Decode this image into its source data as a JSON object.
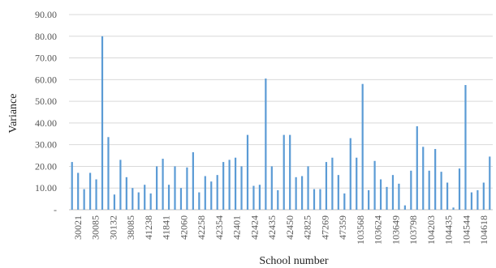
{
  "chart_data": {
    "type": "bar",
    "xlabel": "School number",
    "ylabel": "Variance",
    "ylim": [
      0,
      90
    ],
    "y_ticks": [
      "-",
      "10.00",
      "20.00",
      "30.00",
      "40.00",
      "50.00",
      "60.00",
      "70.00",
      "80.00",
      "90.00"
    ],
    "x_tick_labels": [
      "30021",
      "30085",
      "30132",
      "38085",
      "41238",
      "41841",
      "42060",
      "42258",
      "42354",
      "42401",
      "42424",
      "42435",
      "42450",
      "42825",
      "47269",
      "47359",
      "103568",
      "103624",
      "103649",
      "103798",
      "104203",
      "104435",
      "104544",
      "104618"
    ],
    "grid": "horizontal",
    "bar_color": "#5b9bd5",
    "values": [
      22,
      17,
      9.5,
      17,
      14,
      80,
      33.5,
      7,
      23,
      15,
      10,
      8,
      11.5,
      7.5,
      20,
      23.5,
      11.5,
      20,
      10,
      19.5,
      26.5,
      8,
      15.5,
      13,
      16,
      22,
      23,
      24,
      20,
      34.5,
      11,
      11.5,
      60.5,
      20,
      9,
      34.5,
      34.5,
      15,
      15.5,
      20,
      9.5,
      9.5,
      22,
      24,
      16,
      7.5,
      33,
      24,
      58,
      9,
      22.5,
      14,
      10.5,
      16,
      12,
      2,
      18,
      38.5,
      29,
      18,
      28,
      17.5,
      12.5,
      1,
      19,
      57.5,
      8,
      9,
      12.5,
      24.5
    ]
  }
}
